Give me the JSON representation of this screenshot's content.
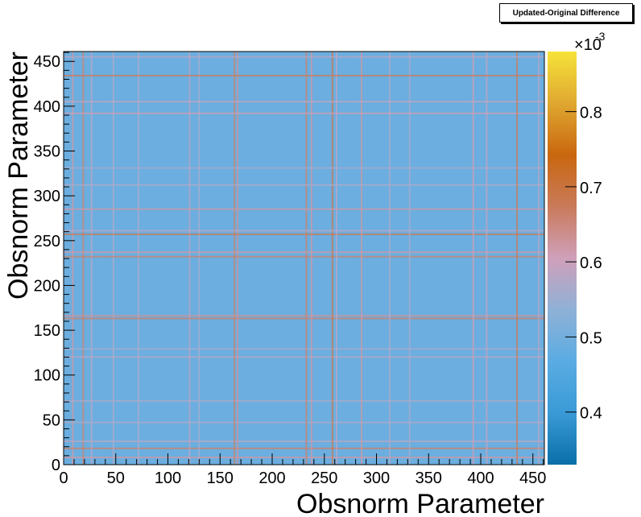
{
  "chart_data": {
    "type": "heatmap",
    "title": "Updated-Original Difference",
    "xlabel": "Obsnorm Parameter",
    "ylabel": "Obsnorm Parameter",
    "xlim": [
      0,
      461
    ],
    "ylim": [
      0,
      461
    ],
    "x_ticks": [
      0,
      50,
      100,
      150,
      200,
      250,
      300,
      350,
      400,
      450
    ],
    "y_ticks": [
      0,
      50,
      100,
      150,
      200,
      250,
      300,
      350,
      400,
      450
    ],
    "z_range": [
      0.00033,
      0.00088
    ],
    "z_multiplier_label": "×10",
    "z_multiplier_exp": "-3",
    "z_ticks": [
      0.4,
      0.5,
      0.6,
      0.7,
      0.8
    ],
    "z_tick_labels": [
      "0.4",
      "0.5",
      "0.6",
      "0.7",
      "0.8"
    ],
    "baseline_value": 0.00049,
    "elevated_lines": [
      {
        "param": 8,
        "value": 0.00062
      },
      {
        "param": 18,
        "value": 0.00066
      },
      {
        "param": 26,
        "value": 0.00058
      },
      {
        "param": 47,
        "value": 0.00057
      },
      {
        "param": 71,
        "value": 0.00057
      },
      {
        "param": 120,
        "value": 0.00058
      },
      {
        "param": 129,
        "value": 0.00056
      },
      {
        "param": 163,
        "value": 0.00066
      },
      {
        "param": 166,
        "value": 0.00063
      },
      {
        "param": 232,
        "value": 0.00066
      },
      {
        "param": 237,
        "value": 0.00062
      },
      {
        "param": 257,
        "value": 0.00068
      },
      {
        "param": 261,
        "value": 0.00058
      },
      {
        "param": 285,
        "value": 0.00062
      },
      {
        "param": 312,
        "value": 0.00057
      },
      {
        "param": 331,
        "value": 0.00056
      },
      {
        "param": 392,
        "value": 0.00061
      },
      {
        "param": 405,
        "value": 0.00059
      },
      {
        "param": 434,
        "value": 0.00067
      },
      {
        "param": 455,
        "value": 0.00058
      }
    ],
    "colorscale": [
      "#0a6fa8",
      "#3a9ad6",
      "#5aace3",
      "#8fb1d6",
      "#cfa0ba",
      "#c97a5a",
      "#c9670f",
      "#e0a830",
      "#f6e33a"
    ]
  }
}
